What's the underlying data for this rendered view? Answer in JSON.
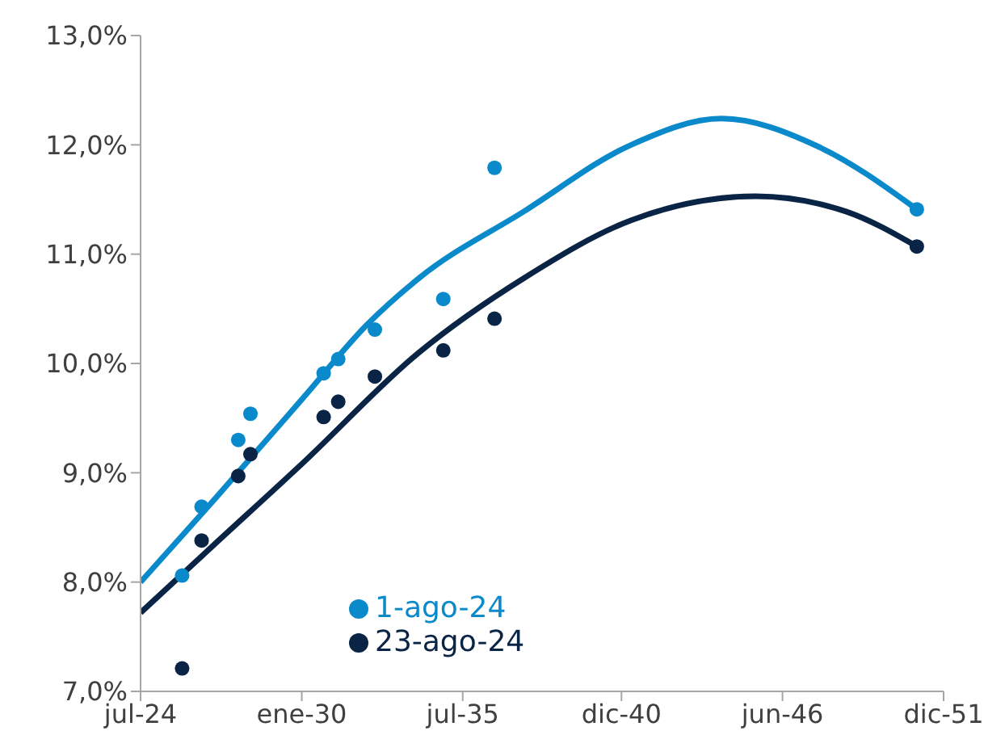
{
  "chart_data": {
    "type": "scatter",
    "xlim": [
      "2024-07-01",
      "2051-12-01"
    ],
    "xticks": [
      {
        "value": "2024-07-01",
        "label": "jul-24"
      },
      {
        "value": "2030-01-01",
        "label": "ene-30"
      },
      {
        "value": "2035-07-01",
        "label": "jul-35"
      },
      {
        "value": "2040-12-01",
        "label": "dic-40"
      },
      {
        "value": "2046-06-01",
        "label": "jun-46"
      },
      {
        "value": "2051-12-01",
        "label": "dic-51"
      }
    ],
    "ylim": [
      7,
      13
    ],
    "yticks": [
      {
        "value": 7,
        "label": "7,0%"
      },
      {
        "value": 8,
        "label": "8,0%"
      },
      {
        "value": 9,
        "label": "9,0%"
      },
      {
        "value": 10,
        "label": "10,0%"
      },
      {
        "value": 11,
        "label": "11,0%"
      },
      {
        "value": 12,
        "label": "12,0%"
      },
      {
        "value": 13,
        "label": "13,0%"
      }
    ],
    "grid": false,
    "legend": "bottom",
    "series": [
      {
        "type": "line",
        "marker": "none",
        "color": "#0a8acb",
        "x": [
          "2024-07",
          "2027-01",
          "2030-01",
          "2032-04",
          "2034-01",
          "2037-08",
          "2041-04",
          "2044-05",
          "2047-09",
          "2051-01"
        ],
        "values": [
          8.0,
          8.75,
          9.67,
          10.36,
          10.78,
          11.39,
          12.0,
          12.24,
          11.98,
          11.41
        ]
      },
      {
        "type": "line",
        "marker": "none",
        "color": "#0a2446",
        "x": [
          "2024-07",
          "2027-01",
          "2030-01",
          "2034-01",
          "2037-08",
          "2041-04",
          "2045-07",
          "2048-08",
          "2051-01"
        ],
        "values": [
          7.72,
          8.34,
          9.08,
          10.1,
          10.78,
          11.31,
          11.53,
          11.39,
          11.07
        ]
      },
      {
        "name": "1-ago-24",
        "marker": "circle",
        "color": "#0a8acb",
        "x": [
          "2025-12",
          "2026-08",
          "2027-11",
          "2028-04",
          "2030-10",
          "2031-04",
          "2032-07",
          "2034-11",
          "2036-08",
          "2051-01"
        ],
        "values": [
          8.06,
          8.69,
          9.3,
          9.54,
          9.91,
          10.04,
          10.31,
          10.59,
          11.79,
          11.41
        ]
      },
      {
        "name": "23-ago-24",
        "marker": "circle",
        "color": "#0a2446",
        "x": [
          "2025-12",
          "2026-08",
          "2027-11",
          "2028-04",
          "2030-10",
          "2031-04",
          "2032-07",
          "2034-11",
          "2036-08",
          "2051-01"
        ],
        "values": [
          7.21,
          8.38,
          8.97,
          9.17,
          9.51,
          9.65,
          9.88,
          10.12,
          10.41,
          11.07
        ]
      }
    ]
  }
}
